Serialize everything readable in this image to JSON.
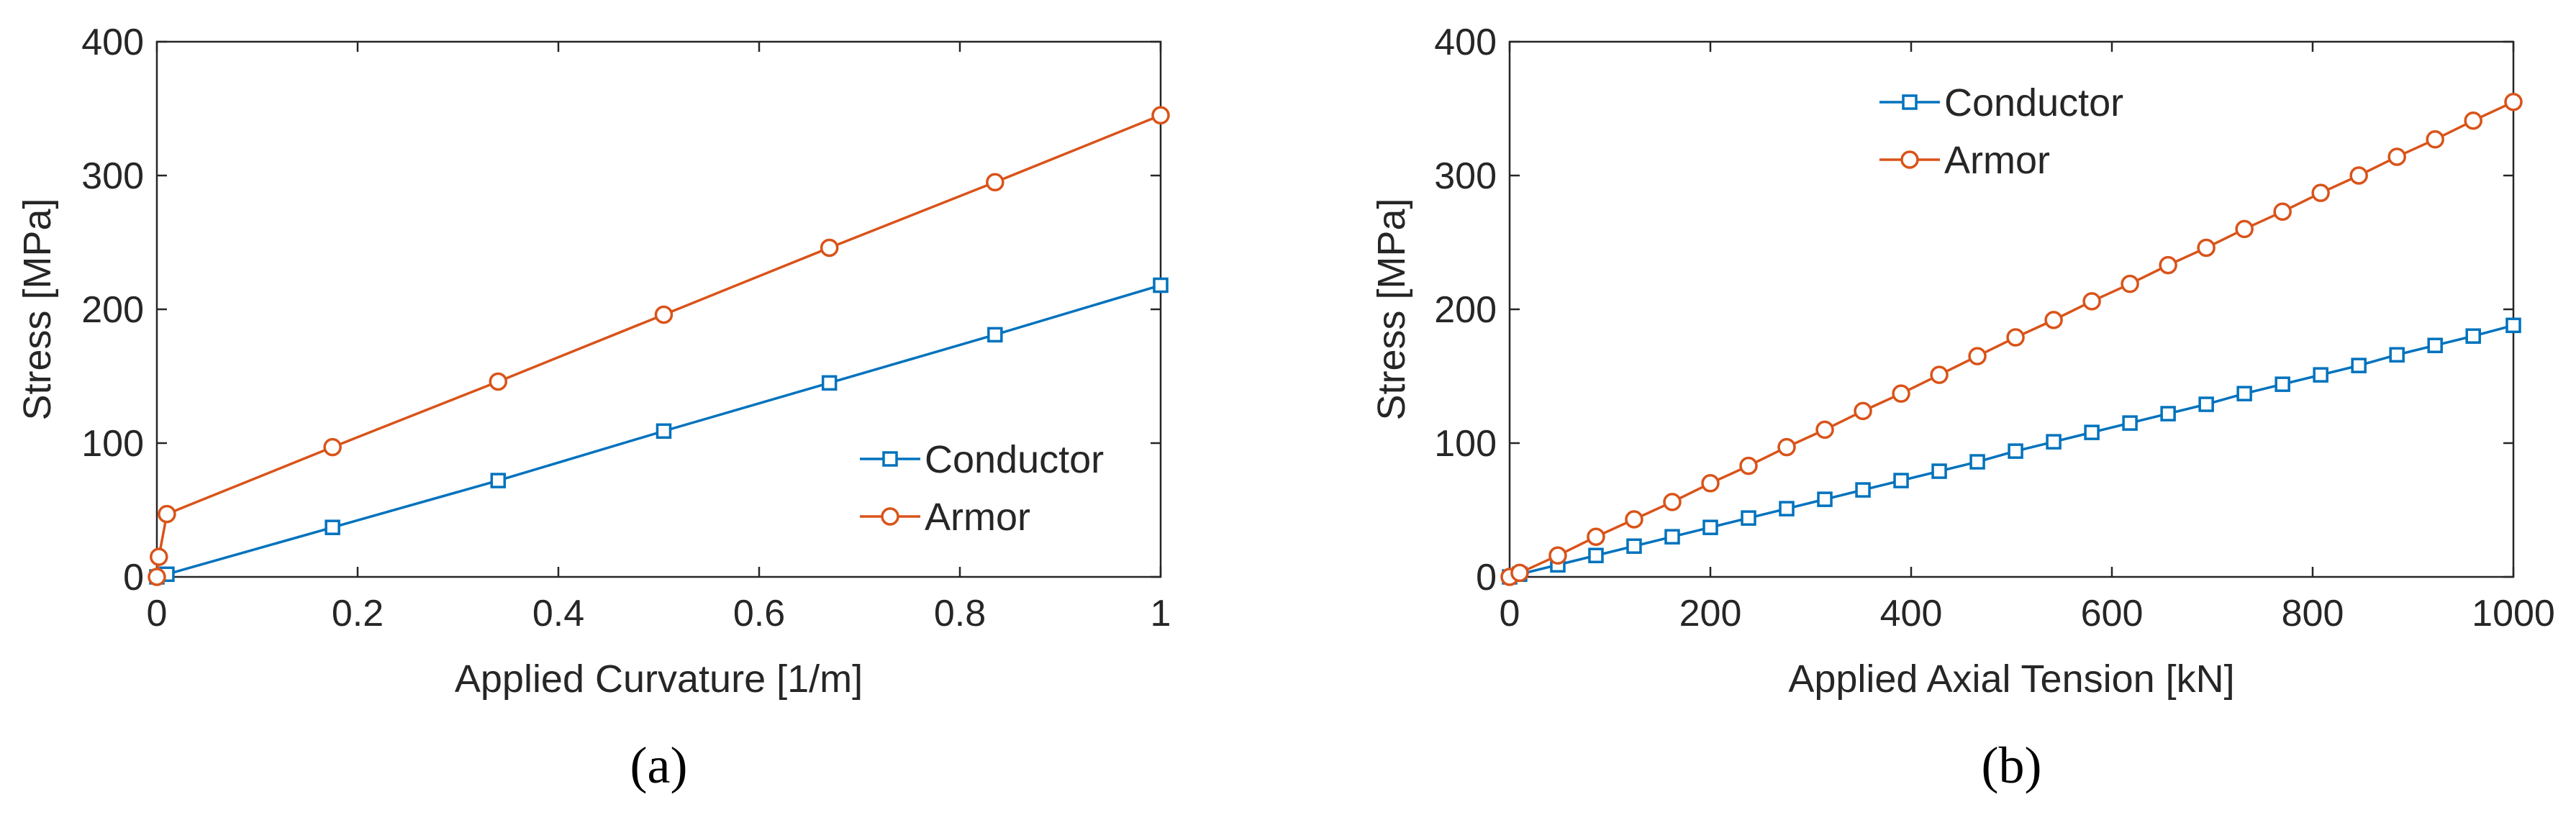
{
  "chart_data": [
    {
      "type": "line",
      "panel_label": "(a)",
      "xlabel": "Applied Curvature [1/m]",
      "ylabel": "Stress [MPa]",
      "xlim": [
        0,
        1
      ],
      "ylim": [
        0,
        400
      ],
      "xticks": [
        0,
        0.2,
        0.4,
        0.6,
        0.8,
        1
      ],
      "xtick_labels": [
        "0",
        "0.2",
        "0.4",
        "0.6",
        "0.8",
        "1"
      ],
      "yticks": [
        0,
        100,
        200,
        300,
        400
      ],
      "ytick_labels": [
        "0",
        "100",
        "200",
        "300",
        "400"
      ],
      "grid": false,
      "legend_position": "lower-right",
      "series": [
        {
          "name": "Conductor",
          "color": "#0072BD",
          "marker": "square",
          "x": [
            0,
            0.01,
            0.175,
            0.34,
            0.505,
            0.67,
            0.835,
            1.0
          ],
          "y": [
            0,
            2,
            37,
            72,
            109,
            145,
            181,
            218
          ]
        },
        {
          "name": "Armor",
          "color": "#D95319",
          "marker": "circle",
          "x": [
            0,
            0.002,
            0.01,
            0.175,
            0.34,
            0.505,
            0.67,
            0.835,
            1.0
          ],
          "y": [
            0,
            15,
            47,
            97,
            146,
            196,
            246,
            295,
            345
          ]
        }
      ]
    },
    {
      "type": "line",
      "panel_label": "(b)",
      "xlabel": "Applied Axial Tension [kN]",
      "ylabel": "Stress [MPa]",
      "xlim": [
        0,
        1000
      ],
      "ylim": [
        0,
        400
      ],
      "xticks": [
        0,
        200,
        400,
        600,
        800,
        1000
      ],
      "xtick_labels": [
        "0",
        "200",
        "400",
        "600",
        "800",
        "1000"
      ],
      "yticks": [
        0,
        100,
        200,
        300,
        400
      ],
      "ytick_labels": [
        "0",
        "100",
        "200",
        "300",
        "400"
      ],
      "grid": false,
      "legend_position": "top-center",
      "series": [
        {
          "name": "Conductor",
          "color": "#0072BD",
          "marker": "square",
          "x": [
            0,
            10,
            48,
            86,
            124,
            162,
            200,
            238,
            276,
            314,
            352,
            390,
            428,
            466,
            504,
            542,
            580,
            618,
            656,
            694,
            732,
            770,
            808,
            846,
            884,
            922,
            960,
            1000
          ],
          "y": [
            0,
            2,
            9,
            16,
            23,
            30,
            37,
            44,
            51,
            58,
            65,
            72,
            79,
            86,
            94,
            101,
            108,
            115,
            122,
            129,
            137,
            144,
            151,
            158,
            166,
            173,
            180,
            188
          ]
        },
        {
          "name": "Armor",
          "color": "#D95319",
          "marker": "circle",
          "x": [
            0,
            10,
            48,
            86,
            124,
            162,
            200,
            238,
            276,
            314,
            352,
            390,
            428,
            466,
            504,
            542,
            580,
            618,
            656,
            694,
            732,
            770,
            808,
            846,
            884,
            922,
            960,
            1000
          ],
          "y": [
            0,
            3,
            16,
            30,
            43,
            56,
            70,
            83,
            97,
            110,
            124,
            137,
            151,
            165,
            179,
            192,
            206,
            219,
            233,
            246,
            260,
            273,
            287,
            300,
            314,
            327,
            341,
            355
          ]
        }
      ]
    }
  ]
}
